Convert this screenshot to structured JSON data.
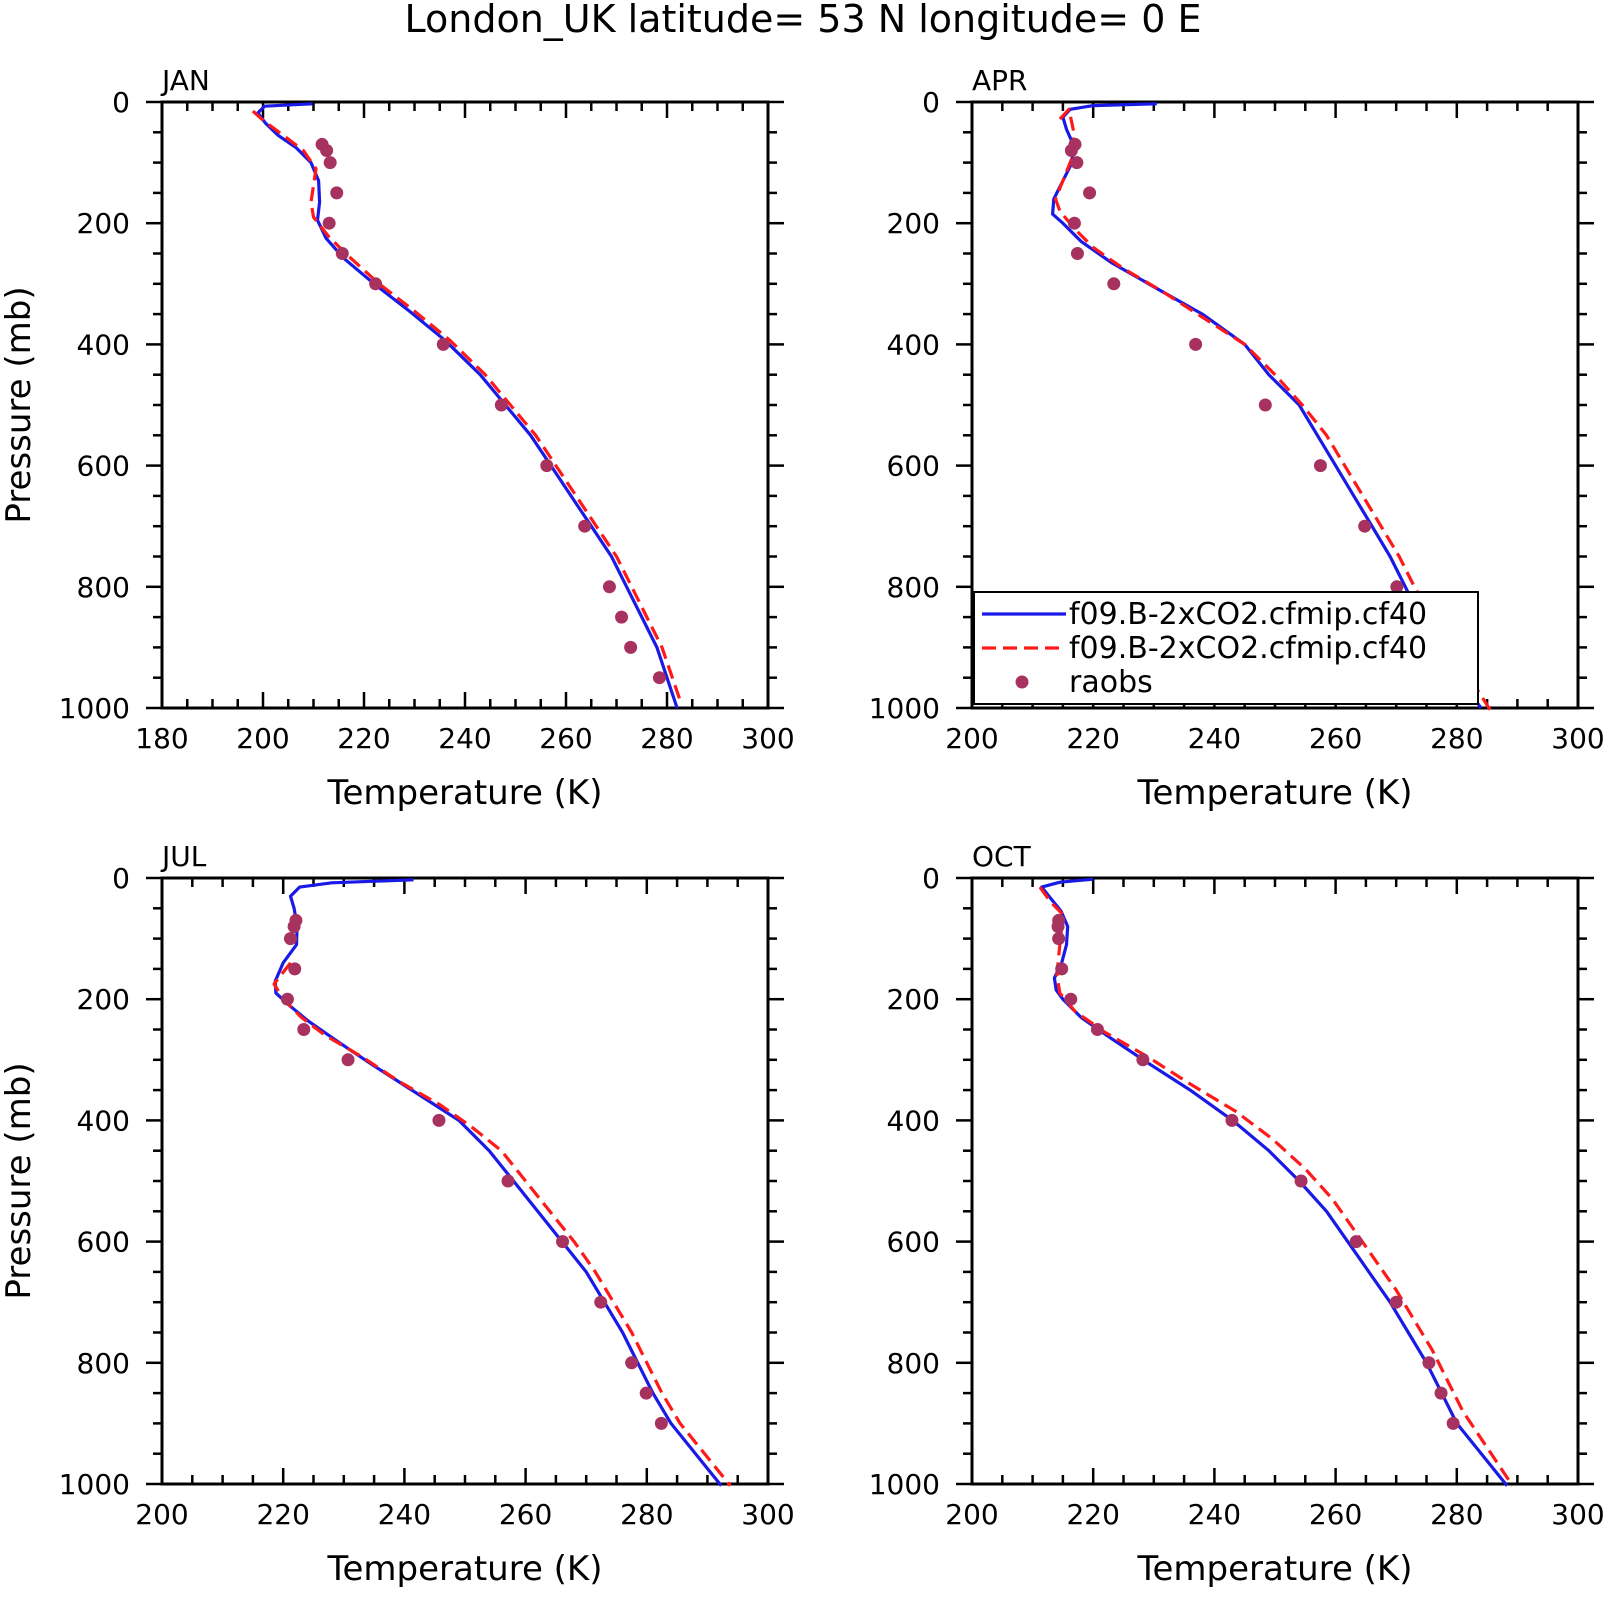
{
  "figure": {
    "suptitle": "London_UK  latitude= 53 N longitude= 0 E"
  },
  "colors": {
    "model_solid": "#1a1ae6",
    "model_dashed": "#ff1a1a",
    "raobs": "#a8325f",
    "axes": "#000000"
  },
  "chart_data": [
    {
      "type": "line",
      "title": "JAN",
      "xlabel": "Temperature (K)",
      "ylabel": "Pressure (mb)",
      "xlim": [
        180,
        300
      ],
      "ylim": [
        1000,
        0
      ],
      "xticks": [
        180,
        200,
        220,
        240,
        260,
        280,
        300
      ],
      "yticks": [
        0,
        200,
        400,
        600,
        800,
        1000
      ],
      "grid": false,
      "legend": false,
      "series": [
        {
          "name": "f09.B-2xCO2.cfmip.cf40",
          "style": "solid",
          "x": [
            209.8,
            200.3,
            199.0,
            200.5,
            203,
            206.5,
            209.5,
            211,
            211.2,
            210.8,
            212.5,
            216,
            222,
            229,
            236,
            243,
            248,
            253,
            257,
            261,
            265,
            269,
            272,
            275,
            278,
            282
          ],
          "y": [
            3,
            7,
            18,
            35,
            55,
            75,
            100,
            130,
            165,
            195,
            225,
            258,
            300,
            345,
            393,
            450,
            500,
            550,
            600,
            650,
            700,
            750,
            800,
            850,
            900,
            1000
          ]
        },
        {
          "name": "f09.B-2xCO2.cfmip.cf40",
          "style": "dashed",
          "x": [
            198.0,
            200,
            204,
            208,
            210.5,
            209.5,
            210,
            213,
            217,
            223,
            230,
            237,
            244,
            249,
            254,
            258,
            262,
            266,
            270,
            273,
            276,
            279,
            282.5
          ],
          "y": [
            15,
            30,
            55,
            80,
            110,
            165,
            190,
            222,
            255,
            300,
            345,
            393,
            450,
            500,
            550,
            600,
            650,
            700,
            750,
            800,
            850,
            900,
            985
          ]
        },
        {
          "name": "raobs",
          "style": "markers",
          "x": [
            211.7,
            212.6,
            213.3,
            214.6,
            213.1,
            215.7,
            222.3,
            235.7,
            247.2,
            256.2,
            263.7,
            268.6,
            271.0,
            272.8,
            278.5
          ],
          "y": [
            70,
            80,
            100,
            150,
            200,
            250,
            300,
            400,
            500,
            600,
            700,
            800,
            850,
            900,
            950
          ]
        }
      ]
    },
    {
      "type": "line",
      "title": "APR",
      "xlabel": "Temperature (K)",
      "ylabel": "",
      "xlim": [
        200,
        300
      ],
      "ylim": [
        1000,
        0
      ],
      "xticks": [
        200,
        220,
        240,
        260,
        280,
        300
      ],
      "yticks": [
        0,
        200,
        400,
        600,
        800,
        1000
      ],
      "grid": false,
      "legend": true,
      "legend_position": "bottom-left",
      "series": [
        {
          "name": "f09.B-2xCO2.cfmip.cf40",
          "style": "solid",
          "x": [
            230.5,
            220,
            216.2,
            215,
            215.6,
            216.7,
            216.5,
            215,
            213.5,
            213.3,
            215,
            218,
            223,
            230,
            238,
            245,
            249,
            254,
            257,
            260,
            263,
            266,
            269,
            271.5,
            274,
            277,
            284
          ],
          "y": [
            3,
            6,
            12,
            25,
            45,
            70,
            100,
            130,
            160,
            185,
            200,
            230,
            265,
            305,
            350,
            400,
            450,
            500,
            550,
            600,
            650,
            700,
            750,
            800,
            850,
            900,
            1000
          ]
        },
        {
          "name": "f09.B-2xCO2.cfmip.cf40",
          "style": "dashed",
          "x": [
            214.5,
            216,
            216.8,
            216.6,
            215,
            213.8,
            214.5,
            217,
            220,
            225,
            231,
            238,
            245,
            250,
            254.5,
            258.5,
            261.5,
            264.5,
            267.5,
            270.5,
            273,
            276,
            279,
            285.5
          ],
          "y": [
            28,
            12,
            50,
            90,
            130,
            160,
            180,
            210,
            240,
            275,
            310,
            355,
            400,
            450,
            500,
            550,
            600,
            650,
            700,
            750,
            800,
            850,
            900,
            1003
          ]
        },
        {
          "name": "raobs",
          "style": "markers",
          "x": [
            217.0,
            216.4,
            217.3,
            219.4,
            216.9,
            217.4,
            223.4,
            236.9,
            248.4,
            257.5,
            264.8,
            270.1,
            272.6,
            274.9
          ],
          "y": [
            70,
            80,
            100,
            150,
            200,
            250,
            300,
            400,
            500,
            600,
            700,
            800,
            850,
            900
          ]
        }
      ]
    },
    {
      "type": "line",
      "title": "JUL",
      "xlabel": "Temperature (K)",
      "ylabel": "Pressure (mb)",
      "xlim": [
        200,
        300
      ],
      "ylim": [
        1000,
        0
      ],
      "xticks": [
        200,
        220,
        240,
        260,
        280,
        300
      ],
      "yticks": [
        0,
        200,
        400,
        600,
        800,
        1000
      ],
      "grid": false,
      "legend": false,
      "series": [
        {
          "name": "f09.B-2xCO2.cfmip.cf40",
          "style": "solid",
          "x": [
            241.5,
            228,
            222.7,
            221.2,
            221.8,
            222.3,
            222.2,
            220,
            218.7,
            218.8,
            221,
            224,
            229,
            235,
            242,
            249,
            254,
            258,
            262,
            266,
            270,
            273,
            276,
            278.5,
            281,
            284,
            292.3
          ],
          "y": [
            3,
            8,
            15,
            30,
            50,
            80,
            110,
            140,
            170,
            190,
            210,
            235,
            270,
            310,
            355,
            400,
            450,
            500,
            550,
            600,
            650,
            700,
            750,
            800,
            850,
            900,
            1003
          ]
        },
        {
          "name": "f09.B-2xCO2.cfmip.cf40",
          "style": "dashed",
          "x": [
            221.2,
            218.5,
            220,
            223,
            227,
            233,
            239,
            246,
            251,
            256,
            260,
            264,
            268,
            271.5,
            274.5,
            277.5,
            280,
            282.5,
            285.5,
            293.8
          ],
          "y": [
            140,
            175,
            200,
            230,
            260,
            295,
            335,
            375,
            410,
            450,
            500,
            550,
            600,
            650,
            700,
            750,
            800,
            850,
            900,
            1003
          ]
        },
        {
          "name": "raobs",
          "style": "markers",
          "x": [
            222.1,
            221.8,
            221.2,
            221.9,
            220.7,
            223.4,
            230.7,
            245.7,
            257.1,
            266.1,
            272.4,
            277.5,
            279.9,
            282.4
          ],
          "y": [
            70,
            80,
            100,
            150,
            200,
            250,
            300,
            400,
            500,
            600,
            700,
            800,
            850,
            900
          ]
        }
      ]
    },
    {
      "type": "line",
      "title": "OCT",
      "xlabel": "Temperature (K)",
      "ylabel": "",
      "xlim": [
        200,
        300
      ],
      "ylim": [
        1000,
        0
      ],
      "xticks": [
        200,
        220,
        240,
        260,
        280,
        300
      ],
      "yticks": [
        0,
        200,
        400,
        600,
        800,
        1000
      ],
      "grid": false,
      "legend": false,
      "series": [
        {
          "name": "f09.B-2xCO2.cfmip.cf40",
          "style": "solid",
          "x": [
            220,
            214.5,
            211.5,
            212.7,
            214.7,
            215.8,
            215.6,
            214.8,
            213.6,
            213.9,
            215,
            218,
            223,
            229,
            236,
            243,
            249,
            254,
            258.5,
            262,
            265.5,
            269,
            272,
            275,
            277.5,
            280,
            288.3
          ],
          "y": [
            2,
            7,
            15,
            30,
            55,
            80,
            110,
            140,
            165,
            185,
            200,
            230,
            265,
            305,
            350,
            400,
            450,
            500,
            550,
            600,
            650,
            700,
            750,
            800,
            850,
            900,
            1003
          ]
        },
        {
          "name": "f09.B-2xCO2.cfmip.cf40",
          "style": "dashed",
          "x": [
            211.2,
            213,
            215,
            214,
            214.5,
            217,
            222,
            229,
            236,
            243.5,
            249.5,
            255,
            259.5,
            263,
            266.5,
            270,
            273,
            276,
            278.5,
            281,
            289.2
          ],
          "y": [
            15,
            40,
            60,
            160,
            190,
            220,
            255,
            295,
            340,
            385,
            430,
            480,
            530,
            580,
            630,
            680,
            730,
            780,
            830,
            880,
            1003
          ]
        },
        {
          "name": "raobs",
          "style": "markers",
          "x": [
            214.3,
            214.2,
            214.3,
            214.8,
            216.3,
            220.7,
            228.2,
            242.9,
            254.3,
            263.4,
            270.0,
            275.4,
            277.4,
            279.4
          ],
          "y": [
            70,
            80,
            100,
            150,
            200,
            250,
            300,
            400,
            500,
            600,
            700,
            800,
            850,
            900
          ]
        }
      ]
    }
  ]
}
